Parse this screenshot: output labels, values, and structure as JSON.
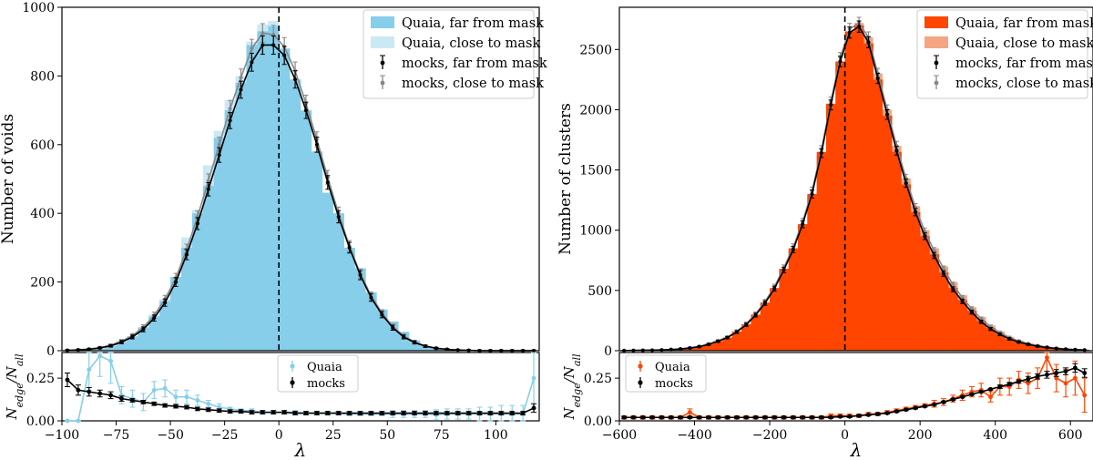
{
  "chart_data": [
    {
      "id": "voids",
      "type": "bar",
      "colors": {
        "far": "#87ceeb",
        "close": "#cbe9f5",
        "mock_far": "#000000",
        "mock_close": "#888888",
        "quaia_line": "#87ceeb"
      },
      "xlabel": "λ",
      "ylabel": "Number of voids",
      "xlim": [
        -100,
        120
      ],
      "ylim": [
        0,
        1000
      ],
      "xticks": [
        -100,
        -75,
        -50,
        -25,
        0,
        25,
        50,
        75,
        100
      ],
      "yticks": [
        0,
        200,
        400,
        600,
        800,
        1000
      ],
      "vline_x": 0,
      "bins": {
        "start": -100,
        "width": 5,
        "count": 44
      },
      "legend": [
        "Quaia, far from mask",
        "Quaia, close to mask",
        "mocks, far from mask",
        "mocks, close to mask"
      ],
      "series": [
        {
          "name": "Quaia, far from mask",
          "values": [
            0,
            2,
            4,
            7,
            14,
            26,
            42,
            68,
            100,
            145,
            215,
            300,
            400,
            480,
            620,
            700,
            780,
            890,
            930,
            945,
            880,
            790,
            700,
            580,
            460,
            400,
            300,
            240,
            170,
            120,
            85,
            55,
            30,
            14,
            8,
            3,
            1,
            0,
            0,
            0,
            0,
            0,
            0,
            0
          ]
        },
        {
          "name": "Quaia, close to mask",
          "values": [
            0,
            1,
            3,
            5,
            12,
            28,
            40,
            65,
            105,
            150,
            210,
            330,
            410,
            540,
            640,
            730,
            800,
            900,
            950,
            960,
            860,
            760,
            660,
            580,
            420,
            370,
            260,
            220,
            140,
            115,
            75,
            48,
            26,
            12,
            6,
            2,
            1,
            0,
            0,
            0,
            0,
            0,
            0,
            0
          ]
        },
        {
          "name": "mocks, far from mask",
          "values": [
            1,
            2,
            4,
            8,
            14,
            25,
            40,
            62,
            95,
            140,
            200,
            280,
            370,
            470,
            570,
            670,
            760,
            840,
            890,
            890,
            860,
            790,
            700,
            600,
            490,
            390,
            300,
            220,
            155,
            105,
            67,
            40,
            24,
            13,
            7,
            4,
            2,
            1,
            0,
            0,
            0,
            0,
            0,
            0
          ]
        },
        {
          "name": "mocks, close to mask",
          "values": [
            1,
            3,
            5,
            9,
            16,
            28,
            44,
            68,
            103,
            150,
            212,
            295,
            390,
            495,
            600,
            705,
            795,
            880,
            925,
            920,
            885,
            815,
            720,
            615,
            505,
            400,
            305,
            225,
            160,
            110,
            70,
            43,
            26,
            14,
            8,
            4,
            2,
            1,
            0,
            0,
            0,
            0,
            0,
            0
          ]
        }
      ],
      "ratio": {
        "ylabel": "N_edge/N_all",
        "ylim": [
          0,
          0.4
        ],
        "yticks": [
          0.0,
          0.25
        ],
        "yticklabels": [
          "0.00",
          "0.25"
        ],
        "legend": [
          "Quaia",
          "mocks"
        ],
        "x": [
          -97.5,
          -92.5,
          -87.5,
          -82.5,
          -77.5,
          -72.5,
          -67.5,
          -62.5,
          -57.5,
          -52.5,
          -47.5,
          -42.5,
          -37.5,
          -32.5,
          -27.5,
          -22.5,
          -17.5,
          -12.5,
          -7.5,
          -2.5,
          2.5,
          7.5,
          12.5,
          17.5,
          22.5,
          27.5,
          32.5,
          37.5,
          42.5,
          47.5,
          52.5,
          57.5,
          62.5,
          67.5,
          72.5,
          77.5,
          82.5,
          87.5,
          92.5,
          97.5,
          102.5,
          107.5,
          112.5,
          117.5
        ],
        "quaia": [
          0.0,
          0.0,
          0.3,
          0.38,
          0.35,
          0.15,
          0.13,
          0.11,
          0.18,
          0.19,
          0.14,
          0.14,
          0.12,
          0.1,
          0.08,
          0.07,
          0.06,
          0.06,
          0.05,
          0.05,
          0.05,
          0.05,
          0.045,
          0.045,
          0.045,
          0.045,
          0.04,
          0.04,
          0.04,
          0.04,
          0.04,
          0.04,
          0.04,
          0.04,
          0.035,
          0.04,
          0.04,
          0.04,
          0.04,
          0.04,
          0.04,
          0.04,
          0.04,
          0.25
        ],
        "quaia_err": [
          0,
          0,
          0.12,
          0.12,
          0.13,
          0.05,
          0.05,
          0.05,
          0.05,
          0.05,
          0.04,
          0.04,
          0.03,
          0.02,
          0.02,
          0.01,
          0.01,
          0.01,
          0.01,
          0.01,
          0.01,
          0.01,
          0.01,
          0.01,
          0.01,
          0.01,
          0.01,
          0.01,
          0.01,
          0.01,
          0.02,
          0.02,
          0.02,
          0.02,
          0.03,
          0.03,
          0.03,
          0.03,
          0.04,
          0.04,
          0.05,
          0.05,
          0.05,
          0.18
        ],
        "mocks": [
          0.24,
          0.18,
          0.17,
          0.16,
          0.15,
          0.13,
          0.12,
          0.11,
          0.1,
          0.09,
          0.085,
          0.08,
          0.07,
          0.065,
          0.06,
          0.055,
          0.055,
          0.05,
          0.05,
          0.05,
          0.05,
          0.045,
          0.045,
          0.045,
          0.045,
          0.045,
          0.045,
          0.045,
          0.045,
          0.045,
          0.045,
          0.045,
          0.045,
          0.045,
          0.045,
          0.045,
          0.045,
          0.045,
          0.045,
          0.045,
          0.045,
          0.045,
          0.045,
          0.075
        ],
        "mocks_err": [
          0.04,
          0.03,
          0.025,
          0.02,
          0.02,
          0.015,
          0.01,
          0.01,
          0.01,
          0.01,
          0.01,
          0.01,
          0.01,
          0.01,
          0.01,
          0.01,
          0.01,
          0.01,
          0.01,
          0.01,
          0.01,
          0.01,
          0.01,
          0.01,
          0.01,
          0.01,
          0.01,
          0.01,
          0.01,
          0.01,
          0.01,
          0.01,
          0.01,
          0.01,
          0.01,
          0.01,
          0.01,
          0.01,
          0.01,
          0.01,
          0.01,
          0.01,
          0.01,
          0.025
        ]
      }
    },
    {
      "id": "clusters",
      "type": "bar",
      "colors": {
        "far": "#ff4500",
        "close": "#f4a582",
        "mock_far": "#000000",
        "mock_close": "#888888",
        "quaia_line": "#ff4500"
      },
      "xlabel": "λ",
      "ylabel": "Number of clusters",
      "xlim": [
        -600,
        660
      ],
      "ylim": [
        0,
        2850
      ],
      "xticks": [
        -600,
        -400,
        -200,
        0,
        200,
        400,
        600
      ],
      "yticks": [
        0,
        500,
        1000,
        1500,
        2000,
        2500
      ],
      "vline_x": 0,
      "bins": {
        "start": -600,
        "width": 25,
        "count": 50
      },
      "legend": [
        "Quaia, far from mask",
        "Quaia, close to mask",
        "mocks, far from mask",
        "mocks, close to mask"
      ],
      "series": [
        {
          "name": "Quaia, far from mask",
          "values": [
            1,
            2,
            3,
            5,
            7,
            10,
            15,
            25,
            35,
            55,
            80,
            110,
            160,
            220,
            300,
            400,
            520,
            680,
            850,
            1050,
            1300,
            1650,
            2050,
            2400,
            2650,
            2700,
            2550,
            2250,
            1950,
            1650,
            1380,
            1150,
            950,
            800,
            650,
            520,
            420,
            330,
            250,
            190,
            140,
            100,
            75,
            55,
            40,
            28,
            20,
            14,
            10,
            7
          ]
        },
        {
          "name": "Quaia, close to mask",
          "values": [
            1,
            2,
            3,
            4,
            6,
            9,
            14,
            22,
            32,
            50,
            75,
            105,
            155,
            215,
            290,
            390,
            510,
            660,
            830,
            1030,
            1280,
            1620,
            2010,
            2380,
            2630,
            2720,
            2600,
            2300,
            2000,
            1700,
            1430,
            1200,
            1000,
            850,
            700,
            570,
            460,
            360,
            280,
            210,
            160,
            115,
            85,
            62,
            45,
            32,
            23,
            16,
            11,
            8
          ]
        },
        {
          "name": "mocks, far from mask",
          "values": [
            1,
            2,
            3,
            4,
            6,
            9,
            14,
            22,
            33,
            52,
            78,
            108,
            155,
            215,
            295,
            395,
            515,
            670,
            840,
            1050,
            1300,
            1640,
            2040,
            2400,
            2640,
            2690,
            2560,
            2260,
            1960,
            1660,
            1390,
            1150,
            950,
            790,
            640,
            510,
            410,
            320,
            240,
            180,
            135,
            98,
            72,
            52,
            37,
            26,
            18,
            12,
            8,
            5
          ]
        },
        {
          "name": "mocks, close to mask",
          "values": [
            1,
            2,
            3,
            5,
            7,
            10,
            15,
            24,
            36,
            56,
            82,
            113,
            162,
            224,
            306,
            408,
            530,
            688,
            860,
            1070,
            1325,
            1665,
            2065,
            2430,
            2670,
            2720,
            2600,
            2300,
            2000,
            1700,
            1430,
            1190,
            990,
            830,
            680,
            548,
            440,
            348,
            265,
            200,
            150,
            110,
            80,
            58,
            42,
            30,
            21,
            14,
            10,
            7
          ]
        }
      ],
      "ratio": {
        "ylabel": "N_edge/N_all",
        "ylim": [
          0,
          0.4
        ],
        "yticks": [
          0.0,
          0.25
        ],
        "yticklabels": [
          "0.00",
          "0.25"
        ],
        "legend": [
          "Quaia",
          "mocks"
        ],
        "x": [
          -587.5,
          -562.5,
          -537.5,
          -512.5,
          -487.5,
          -462.5,
          -437.5,
          -412.5,
          -387.5,
          -362.5,
          -337.5,
          -312.5,
          -287.5,
          -262.5,
          -237.5,
          -212.5,
          -187.5,
          -162.5,
          -137.5,
          -112.5,
          -87.5,
          -62.5,
          -37.5,
          -12.5,
          12.5,
          37.5,
          62.5,
          87.5,
          112.5,
          137.5,
          162.5,
          187.5,
          212.5,
          237.5,
          262.5,
          287.5,
          312.5,
          337.5,
          362.5,
          387.5,
          412.5,
          437.5,
          462.5,
          487.5,
          512.5,
          537.5,
          562.5,
          587.5,
          612.5,
          637.5
        ],
        "quaia": [
          0.02,
          0.02,
          0.02,
          0.02,
          0.02,
          0.02,
          0.02,
          0.05,
          0.02,
          0.02,
          0.02,
          0.02,
          0.02,
          0.02,
          0.02,
          0.02,
          0.02,
          0.02,
          0.02,
          0.02,
          0.02,
          0.02,
          0.03,
          0.03,
          0.03,
          0.03,
          0.04,
          0.04,
          0.05,
          0.06,
          0.07,
          0.08,
          0.09,
          0.1,
          0.11,
          0.13,
          0.15,
          0.17,
          0.18,
          0.14,
          0.2,
          0.2,
          0.24,
          0.22,
          0.25,
          0.37,
          0.25,
          0.22,
          0.25,
          0.15
        ],
        "quaia_err": [
          0.01,
          0.01,
          0.01,
          0.01,
          0.01,
          0.01,
          0.01,
          0.02,
          0.01,
          0.01,
          0.01,
          0.01,
          0.01,
          0.01,
          0.01,
          0.01,
          0.01,
          0.01,
          0.01,
          0.01,
          0.01,
          0.01,
          0.01,
          0.01,
          0.01,
          0.01,
          0.01,
          0.01,
          0.01,
          0.01,
          0.01,
          0.01,
          0.01,
          0.02,
          0.02,
          0.02,
          0.03,
          0.03,
          0.04,
          0.03,
          0.05,
          0.05,
          0.05,
          0.06,
          0.06,
          0.08,
          0.08,
          0.08,
          0.1,
          0.1
        ],
        "mocks": [
          0.02,
          0.02,
          0.02,
          0.02,
          0.02,
          0.02,
          0.02,
          0.02,
          0.02,
          0.02,
          0.02,
          0.02,
          0.02,
          0.02,
          0.02,
          0.02,
          0.02,
          0.02,
          0.02,
          0.02,
          0.02,
          0.02,
          0.02,
          0.025,
          0.025,
          0.03,
          0.035,
          0.04,
          0.045,
          0.055,
          0.065,
          0.075,
          0.085,
          0.095,
          0.11,
          0.125,
          0.14,
          0.155,
          0.17,
          0.185,
          0.2,
          0.215,
          0.23,
          0.245,
          0.26,
          0.27,
          0.28,
          0.29,
          0.31,
          0.28
        ],
        "mocks_err": [
          0.005,
          0.005,
          0.005,
          0.005,
          0.005,
          0.005,
          0.005,
          0.005,
          0.005,
          0.005,
          0.005,
          0.005,
          0.005,
          0.005,
          0.005,
          0.005,
          0.005,
          0.005,
          0.005,
          0.005,
          0.005,
          0.005,
          0.005,
          0.005,
          0.005,
          0.005,
          0.005,
          0.005,
          0.005,
          0.005,
          0.005,
          0.005,
          0.005,
          0.005,
          0.005,
          0.005,
          0.005,
          0.005,
          0.005,
          0.005,
          0.01,
          0.01,
          0.01,
          0.015,
          0.015,
          0.02,
          0.02,
          0.02,
          0.025,
          0.025
        ]
      }
    }
  ]
}
